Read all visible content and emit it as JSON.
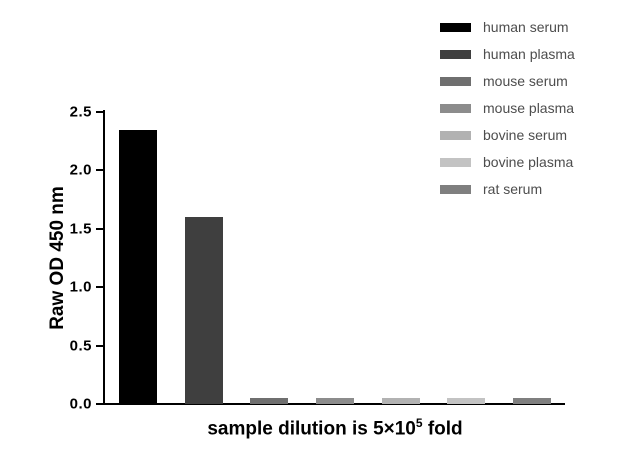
{
  "chart_data": {
    "type": "bar",
    "title": "",
    "ylabel": "Raw OD 450 nm",
    "xlabel": "sample dilution is 5×10⁵ fold",
    "xlabel_parts": {
      "prefix": "sample dilution is 5×10",
      "sup": "5",
      "suffix": " fold"
    },
    "ylim": [
      0,
      2.5
    ],
    "yticks": [
      "0.0",
      "0.5",
      "1.0",
      "1.5",
      "2.0",
      "2.5"
    ],
    "grid": false,
    "legend_position": "top-right",
    "series": [
      {
        "name": "human serum",
        "value": 2.35,
        "color": "#000000"
      },
      {
        "name": "human plasma",
        "value": 1.6,
        "color": "#3f3f3f"
      },
      {
        "name": "mouse serum",
        "value": 0.05,
        "color": "#6f6f6f"
      },
      {
        "name": "mouse plasma",
        "value": 0.05,
        "color": "#8c8c8c"
      },
      {
        "name": "bovine serum",
        "value": 0.05,
        "color": "#b2b2b2"
      },
      {
        "name": "bovine plasma",
        "value": 0.05,
        "color": "#c3c3c3"
      },
      {
        "name": "rat serum",
        "value": 0.05,
        "color": "#7f7f7f"
      }
    ]
  }
}
